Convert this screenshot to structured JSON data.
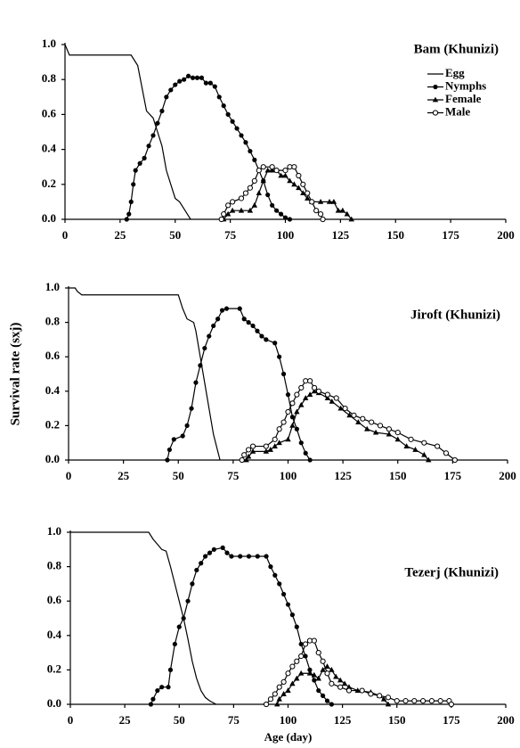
{
  "chart_data": [
    {
      "type": "line",
      "title": "Bam (Khunizi)",
      "legend": "upper right",
      "xlim": [
        0,
        200
      ],
      "xticks": [
        0,
        25,
        50,
        75,
        100,
        125,
        150,
        175,
        200
      ],
      "ylim": [
        0,
        1
      ],
      "yticks": [
        {
          "value": 0,
          "label": "0.0"
        },
        0.2,
        0.4,
        0.6,
        0.8,
        {
          "value": 1,
          "label": "1.0"
        }
      ],
      "series": [
        {
          "name": "Egg",
          "color": "#000000",
          "marker": "none",
          "x": [
            0,
            2,
            30,
            33,
            35,
            37,
            40,
            42,
            44,
            46,
            48,
            50,
            52,
            54,
            56,
            57
          ],
          "values": [
            1.0,
            0.94,
            0.94,
            0.88,
            0.75,
            0.62,
            0.58,
            0.5,
            0.42,
            0.28,
            0.2,
            0.12,
            0.1,
            0.06,
            0.02,
            0
          ]
        },
        {
          "name": "Nymphs",
          "color": "#000000",
          "marker": "circle",
          "x": [
            28,
            29,
            30,
            31,
            32,
            34,
            36,
            38,
            40,
            42,
            44,
            46,
            48,
            50,
            52,
            54,
            56,
            58,
            60,
            62,
            64,
            66,
            68,
            70,
            72,
            74,
            76,
            78,
            80,
            82,
            84,
            86,
            88,
            90,
            92,
            94,
            96,
            98,
            100,
            102
          ],
          "values": [
            0,
            0.03,
            0.1,
            0.2,
            0.28,
            0.32,
            0.35,
            0.42,
            0.48,
            0.55,
            0.62,
            0.7,
            0.74,
            0.77,
            0.79,
            0.8,
            0.82,
            0.81,
            0.81,
            0.81,
            0.78,
            0.78,
            0.76,
            0.7,
            0.65,
            0.6,
            0.56,
            0.52,
            0.48,
            0.44,
            0.39,
            0.34,
            0.28,
            0.22,
            0.14,
            0.08,
            0.05,
            0.03,
            0.01,
            0
          ]
        },
        {
          "name": "Female",
          "color": "#000000",
          "marker": "triangle",
          "x": [
            72,
            74,
            76,
            80,
            84,
            86,
            88,
            90,
            92,
            94,
            96,
            98,
            100,
            102,
            104,
            106,
            108,
            110,
            112,
            116,
            120,
            122,
            124,
            126,
            128,
            130
          ],
          "values": [
            0,
            0.03,
            0.05,
            0.05,
            0.05,
            0.08,
            0.15,
            0.22,
            0.28,
            0.28,
            0.28,
            0.25,
            0.25,
            0.22,
            0.2,
            0.18,
            0.15,
            0.12,
            0.1,
            0.1,
            0.1,
            0.1,
            0.05,
            0.05,
            0.03,
            0
          ]
        },
        {
          "name": "Male",
          "color": "#000000",
          "marker": "open-circle",
          "x": [
            71,
            72,
            74,
            76,
            80,
            82,
            84,
            86,
            88,
            90,
            94,
            96,
            100,
            102,
            104,
            106,
            108,
            110,
            112,
            114,
            116,
            117
          ],
          "values": [
            0,
            0.03,
            0.08,
            0.1,
            0.12,
            0.15,
            0.18,
            0.22,
            0.28,
            0.3,
            0.3,
            0.28,
            0.28,
            0.3,
            0.3,
            0.25,
            0.2,
            0.15,
            0.1,
            0.05,
            0.03,
            0
          ]
        }
      ]
    },
    {
      "type": "line",
      "title": "Jiroft (Khunizi)",
      "ylabel": "Survival rate (sxj)",
      "xlim": [
        0,
        200
      ],
      "xticks": [
        0,
        25,
        50,
        75,
        100,
        125,
        150,
        175,
        200
      ],
      "ylim": [
        0,
        1
      ],
      "yticks": [
        {
          "value": 0,
          "label": "0.0"
        },
        0.2,
        0.4,
        0.6,
        0.8,
        {
          "value": 1,
          "label": "1.0"
        }
      ],
      "series": [
        {
          "name": "Egg",
          "color": "#000000",
          "marker": "none",
          "x": [
            0,
            3,
            4,
            6,
            50,
            52,
            54,
            57,
            58,
            60,
            62,
            64,
            66,
            68,
            69
          ],
          "values": [
            1.0,
            1.0,
            0.98,
            0.96,
            0.96,
            0.88,
            0.82,
            0.8,
            0.75,
            0.6,
            0.45,
            0.3,
            0.15,
            0.05,
            0
          ]
        },
        {
          "name": "Nymphs",
          "color": "#000000",
          "marker": "circle",
          "x": [
            45,
            46,
            48,
            52,
            54,
            56,
            58,
            60,
            62,
            64,
            66,
            68,
            70,
            72,
            78,
            80,
            82,
            84,
            86,
            88,
            90,
            94,
            96,
            98,
            100,
            102,
            104,
            106,
            108,
            110
          ],
          "values": [
            0,
            0.06,
            0.12,
            0.14,
            0.2,
            0.3,
            0.45,
            0.55,
            0.65,
            0.72,
            0.78,
            0.82,
            0.87,
            0.88,
            0.88,
            0.82,
            0.8,
            0.78,
            0.75,
            0.72,
            0.7,
            0.68,
            0.6,
            0.5,
            0.38,
            0.25,
            0.18,
            0.1,
            0.04,
            0
          ]
        },
        {
          "name": "Female",
          "color": "#000000",
          "marker": "triangle",
          "x": [
            81,
            82,
            84,
            90,
            92,
            94,
            96,
            100,
            102,
            104,
            106,
            108,
            110,
            112,
            114,
            118,
            120,
            124,
            128,
            132,
            136,
            140,
            146,
            150,
            154,
            158,
            162,
            164
          ],
          "values": [
            0,
            0.02,
            0.05,
            0.05,
            0.06,
            0.08,
            0.1,
            0.12,
            0.2,
            0.28,
            0.32,
            0.36,
            0.38,
            0.4,
            0.39,
            0.36,
            0.34,
            0.3,
            0.26,
            0.22,
            0.18,
            0.16,
            0.15,
            0.12,
            0.08,
            0.06,
            0.03,
            0
          ]
        },
        {
          "name": "Male",
          "color": "#000000",
          "marker": "open-circle",
          "x": [
            79,
            80,
            82,
            84,
            90,
            94,
            96,
            98,
            100,
            102,
            104,
            106,
            108,
            110,
            112,
            114,
            118,
            122,
            126,
            130,
            134,
            138,
            142,
            146,
            150,
            156,
            162,
            168,
            172,
            176
          ],
          "values": [
            0,
            0.03,
            0.06,
            0.08,
            0.08,
            0.12,
            0.18,
            0.22,
            0.28,
            0.33,
            0.38,
            0.42,
            0.46,
            0.46,
            0.42,
            0.4,
            0.38,
            0.36,
            0.3,
            0.26,
            0.24,
            0.22,
            0.2,
            0.18,
            0.16,
            0.12,
            0.1,
            0.08,
            0.04,
            0
          ]
        }
      ]
    },
    {
      "type": "line",
      "title": "Tezerj (Khunizi)",
      "xlabel": "Age (day)",
      "xlim": [
        0,
        200
      ],
      "xticks": [
        0,
        25,
        50,
        75,
        100,
        125,
        150,
        175,
        200
      ],
      "ylim": [
        0,
        1
      ],
      "yticks": [
        {
          "value": 0,
          "label": "0.0"
        },
        0.2,
        0.4,
        0.6,
        0.8,
        {
          "value": 1,
          "label": "1.0"
        }
      ],
      "series": [
        {
          "name": "Egg",
          "color": "#000000",
          "marker": "none",
          "x": [
            0,
            36,
            38,
            40,
            42,
            44,
            46,
            48,
            50,
            52,
            54,
            56,
            58,
            60,
            62,
            64,
            67
          ],
          "values": [
            1.0,
            1.0,
            0.96,
            0.93,
            0.9,
            0.89,
            0.8,
            0.7,
            0.6,
            0.5,
            0.38,
            0.25,
            0.15,
            0.08,
            0.04,
            0.02,
            0
          ]
        },
        {
          "name": "Nymphs",
          "color": "#000000",
          "marker": "circle",
          "x": [
            37,
            38,
            40,
            42,
            45,
            46,
            48,
            50,
            52,
            54,
            56,
            58,
            60,
            62,
            64,
            66,
            70,
            72,
            74,
            78,
            82,
            86,
            90,
            92,
            94,
            96,
            98,
            100,
            102,
            104,
            106,
            108,
            110,
            112,
            114,
            116,
            118,
            120
          ],
          "values": [
            0,
            0.03,
            0.08,
            0.1,
            0.1,
            0.2,
            0.35,
            0.45,
            0.5,
            0.6,
            0.7,
            0.78,
            0.82,
            0.86,
            0.88,
            0.9,
            0.91,
            0.88,
            0.86,
            0.86,
            0.86,
            0.86,
            0.86,
            0.8,
            0.75,
            0.7,
            0.64,
            0.58,
            0.52,
            0.45,
            0.35,
            0.28,
            0.2,
            0.14,
            0.08,
            0.05,
            0.02,
            0
          ]
        },
        {
          "name": "Female",
          "color": "#000000",
          "marker": "triangle",
          "x": [
            95,
            96,
            98,
            100,
            102,
            104,
            106,
            110,
            112,
            114,
            116,
            118,
            120,
            122,
            124,
            126,
            128,
            132,
            138,
            142,
            144,
            146
          ],
          "values": [
            0,
            0.03,
            0.06,
            0.08,
            0.12,
            0.15,
            0.18,
            0.18,
            0.17,
            0.15,
            0.2,
            0.22,
            0.2,
            0.16,
            0.14,
            0.12,
            0.1,
            0.08,
            0.07,
            0.05,
            0.03,
            0
          ]
        },
        {
          "name": "Male",
          "color": "#000000",
          "marker": "open-circle",
          "x": [
            90,
            92,
            94,
            96,
            98,
            100,
            102,
            104,
            106,
            108,
            110,
            112,
            114,
            116,
            118,
            120,
            124,
            128,
            134,
            138,
            142,
            146,
            150,
            154,
            158,
            162,
            166,
            170,
            174,
            175
          ],
          "values": [
            0,
            0.03,
            0.06,
            0.1,
            0.13,
            0.18,
            0.22,
            0.25,
            0.28,
            0.35,
            0.37,
            0.37,
            0.3,
            0.25,
            0.18,
            0.12,
            0.1,
            0.08,
            0.08,
            0.06,
            0.05,
            0.04,
            0.02,
            0.02,
            0.02,
            0.02,
            0.02,
            0.02,
            0.02,
            0
          ]
        }
      ]
    }
  ]
}
